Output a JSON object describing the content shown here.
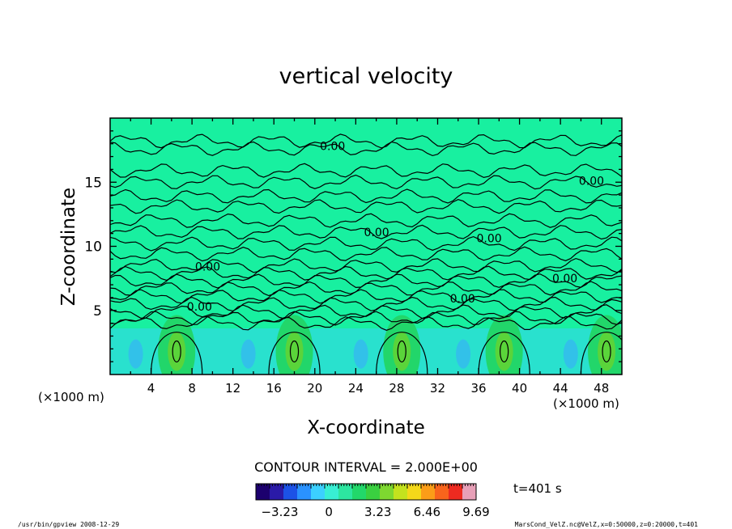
{
  "chart_data": {
    "type": "heatmap",
    "title": "vertical velocity",
    "xlabel": "X-coordinate",
    "ylabel": "Z-coordinate",
    "x_unit": "(×1000 m)",
    "y_unit": "(×1000 m)",
    "xlim": [
      0,
      50
    ],
    "ylim": [
      0,
      20
    ],
    "x_ticks": [
      "4",
      "8",
      "12",
      "16",
      "20",
      "24",
      "28",
      "32",
      "36",
      "40",
      "44",
      "48"
    ],
    "y_ticks": [
      "5",
      "10",
      "15"
    ],
    "plumes_x": [
      6.5,
      18,
      28.5,
      38.5,
      48.5
    ],
    "contour_interval_text": "CONTOUR INTERVAL = 2.000E+00",
    "contour_labels": [
      {
        "text": "0.00",
        "x": 20.5,
        "y": 17.5
      },
      {
        "text": "0.00",
        "x": 45.8,
        "y": 14.8
      },
      {
        "text": "0.00",
        "x": 24.8,
        "y": 10.8
      },
      {
        "text": "0.00",
        "x": 35.8,
        "y": 10.3
      },
      {
        "text": "0.00",
        "x": 8.3,
        "y": 8.1
      },
      {
        "text": "0.00",
        "x": 43.2,
        "y": 7.2
      },
      {
        "text": "0.00",
        "x": 33.2,
        "y": 5.6
      },
      {
        "text": "0.00",
        "x": 7.5,
        "y": 5.0
      }
    ],
    "colorbar": {
      "min": -4.8,
      "max": 9.69,
      "tick_labels": [
        "−3.23",
        "0",
        "3.23",
        "6.46",
        "9.69"
      ],
      "tick_values": [
        -3.23,
        0,
        3.23,
        6.46,
        9.69
      ],
      "colors": [
        "#1c006e",
        "#2a1aa8",
        "#1c52e6",
        "#2a92ff",
        "#3cd0ff",
        "#38efd4",
        "#2de6a0",
        "#22d86a",
        "#3ad040",
        "#7ed830",
        "#c4e21e",
        "#f4d81a",
        "#fb9d18",
        "#f8641c",
        "#ee2a20",
        "#e8a0b8"
      ]
    },
    "background_color": "#18f0a0"
  },
  "time_label": "t=401 s",
  "footer_left": "/usr/bin/gpview   2008-12-29",
  "footer_right": "MarsCond_VelZ.nc@VelZ,x=0:50000,z=0:20000,t=401"
}
